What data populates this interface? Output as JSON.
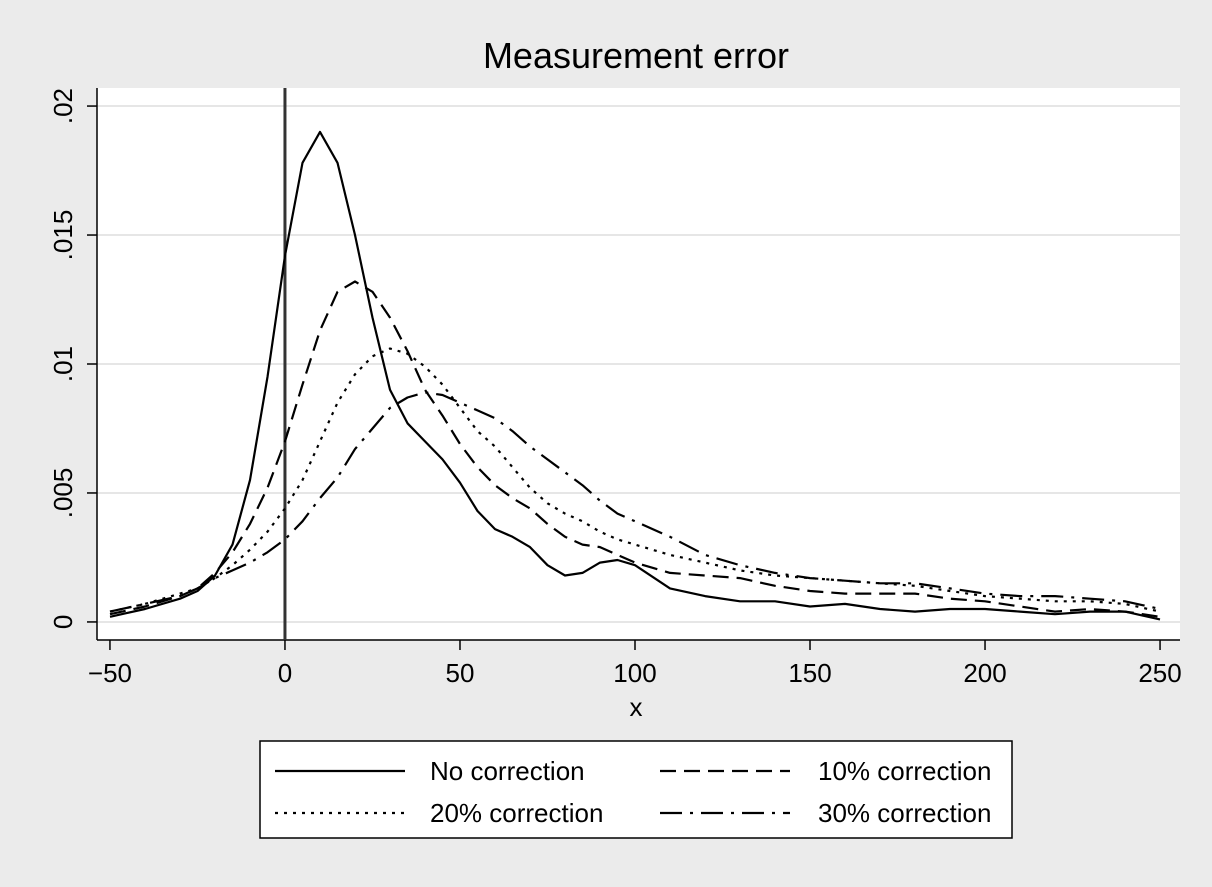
{
  "chart_data": {
    "type": "line",
    "title": "Measurement error",
    "x_label": "x",
    "x": [
      -50,
      -40,
      -30,
      -25,
      -20,
      -15,
      -10,
      -5,
      0,
      5,
      10,
      15,
      20,
      25,
      30,
      35,
      40,
      45,
      50,
      55,
      60,
      65,
      70,
      75,
      80,
      85,
      90,
      95,
      100,
      110,
      120,
      130,
      140,
      150,
      160,
      170,
      180,
      190,
      200,
      210,
      220,
      230,
      240,
      250
    ],
    "series": [
      {
        "name": "No correction",
        "color": "#000000",
        "dash": "solid",
        "values": [
          0.0002,
          0.0005,
          0.0009,
          0.0012,
          0.0018,
          0.003,
          0.0055,
          0.0095,
          0.0142,
          0.0178,
          0.019,
          0.0178,
          0.015,
          0.0118,
          0.009,
          0.0077,
          0.007,
          0.0063,
          0.0054,
          0.0043,
          0.0036,
          0.0033,
          0.0029,
          0.0022,
          0.0018,
          0.0019,
          0.0023,
          0.0024,
          0.0022,
          0.0013,
          0.001,
          0.0008,
          0.0008,
          0.0006,
          0.0007,
          0.0005,
          0.0004,
          0.0005,
          0.0005,
          0.0004,
          0.0003,
          0.0004,
          0.0004,
          0.0001
        ]
      },
      {
        "name": "10% correction",
        "color": "#000000",
        "dash": "dash",
        "values": [
          0.0003,
          0.0006,
          0.001,
          0.0013,
          0.0019,
          0.0027,
          0.0038,
          0.0052,
          0.007,
          0.0092,
          0.0113,
          0.0128,
          0.0132,
          0.0128,
          0.0118,
          0.0105,
          0.009,
          0.008,
          0.0069,
          0.006,
          0.0053,
          0.0048,
          0.0044,
          0.0038,
          0.0033,
          0.003,
          0.0029,
          0.0026,
          0.0023,
          0.0019,
          0.0018,
          0.0017,
          0.0014,
          0.0012,
          0.0011,
          0.0011,
          0.0011,
          0.0009,
          0.0008,
          0.0006,
          0.0004,
          0.0005,
          0.0004,
          0.0002
        ]
      },
      {
        "name": "20% correction",
        "color": "#000000",
        "dash": "dot",
        "values": [
          0.0004,
          0.0007,
          0.0011,
          0.0013,
          0.0017,
          0.0022,
          0.0028,
          0.0035,
          0.0044,
          0.0055,
          0.007,
          0.0085,
          0.0096,
          0.0103,
          0.0106,
          0.0104,
          0.0099,
          0.0092,
          0.0083,
          0.0074,
          0.0068,
          0.006,
          0.0052,
          0.0046,
          0.0042,
          0.0039,
          0.0035,
          0.0032,
          0.003,
          0.0026,
          0.0023,
          0.002,
          0.0018,
          0.0017,
          0.0016,
          0.0015,
          0.0014,
          0.0012,
          0.001,
          0.0009,
          0.0008,
          0.0008,
          0.0007,
          0.0004
        ]
      },
      {
        "name": "30% correction",
        "color": "#000000",
        "dash": "dashdot",
        "values": [
          0.0004,
          0.0007,
          0.001,
          0.0013,
          0.0017,
          0.002,
          0.0023,
          0.0027,
          0.0032,
          0.0039,
          0.0048,
          0.0056,
          0.0067,
          0.0075,
          0.0083,
          0.0087,
          0.0089,
          0.0088,
          0.0085,
          0.0082,
          0.0079,
          0.0074,
          0.0068,
          0.0063,
          0.0058,
          0.0053,
          0.0047,
          0.0042,
          0.0039,
          0.0033,
          0.0026,
          0.0022,
          0.0019,
          0.0017,
          0.0016,
          0.0015,
          0.0015,
          0.0013,
          0.0011,
          0.001,
          0.001,
          0.0009,
          0.0008,
          0.0005
        ]
      }
    ],
    "xlim": [
      -53.7,
      255.7
    ],
    "xticks": [
      {
        "value": -50,
        "label": "−50"
      },
      0,
      50,
      100,
      150,
      200,
      250
    ],
    "ylim": [
      -0.0007,
      0.0207
    ],
    "yticks": [
      0,
      {
        "value": 0.005,
        "label": ".005"
      },
      {
        "value": 0.01,
        "label": ".01"
      },
      {
        "value": 0.015,
        "label": ".015"
      },
      {
        "value": 0.02,
        "label": ".02"
      }
    ],
    "grid": true,
    "xline": 0,
    "legend": "bottom"
  }
}
